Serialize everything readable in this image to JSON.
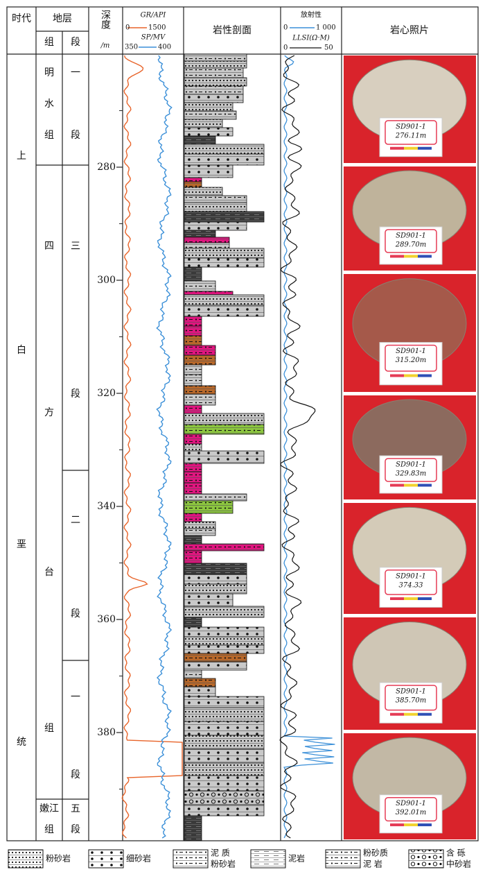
{
  "header": {
    "era": "时代",
    "strata": "地层",
    "formation": "组",
    "member": "段",
    "depth": "深度",
    "depth_unit": "/m",
    "gr": "GR/API",
    "gr_min": "0",
    "gr_max": "1500",
    "sp": "SP/MV",
    "sp_min": "350",
    "sp_max": "400",
    "lithology": "岩性剖面",
    "rad": "放射性",
    "rad_min": "0",
    "rad_max": "1 000",
    "llsi": "LLSI(Ω·M)",
    "llsi_min": "0",
    "llsi_max": "50",
    "photos": "岩心照片"
  },
  "era": [
    "上",
    "白",
    "垩",
    "统"
  ],
  "formations": [
    [
      "明",
      "水",
      "组"
    ],
    [
      "四",
      "方",
      "台",
      "组"
    ],
    [
      "嫩江",
      "组"
    ]
  ],
  "members": [
    [
      "一",
      "段"
    ],
    [
      "三",
      "段"
    ],
    [
      "二",
      "段"
    ],
    [
      "一",
      "段"
    ],
    [
      "五",
      "段"
    ]
  ],
  "depth": {
    "ticks": [
      280,
      300,
      320,
      340,
      360,
      380
    ],
    "minor_ticks": [
      270,
      290,
      310,
      330,
      350,
      370,
      390
    ]
  },
  "samples": [
    [
      "SD901-1",
      "276.11m"
    ],
    [
      "SD901-1",
      "289.70m"
    ],
    [
      "SD901-1",
      "315.20m"
    ],
    [
      "SD901-1",
      "329.83m"
    ],
    [
      "SD901-1",
      "374.33"
    ],
    [
      "SD901-1",
      "385.70m"
    ],
    [
      "SD901-1",
      "392.01m"
    ]
  ],
  "legend": [
    [
      "粉砂岩"
    ],
    [
      "细砂岩"
    ],
    [
      "泥 质",
      "粉砂岩"
    ],
    [
      "泥岩"
    ],
    [
      "粉砂质",
      "泥 岩"
    ],
    [
      "含 砾",
      "中砂岩"
    ]
  ]
}
